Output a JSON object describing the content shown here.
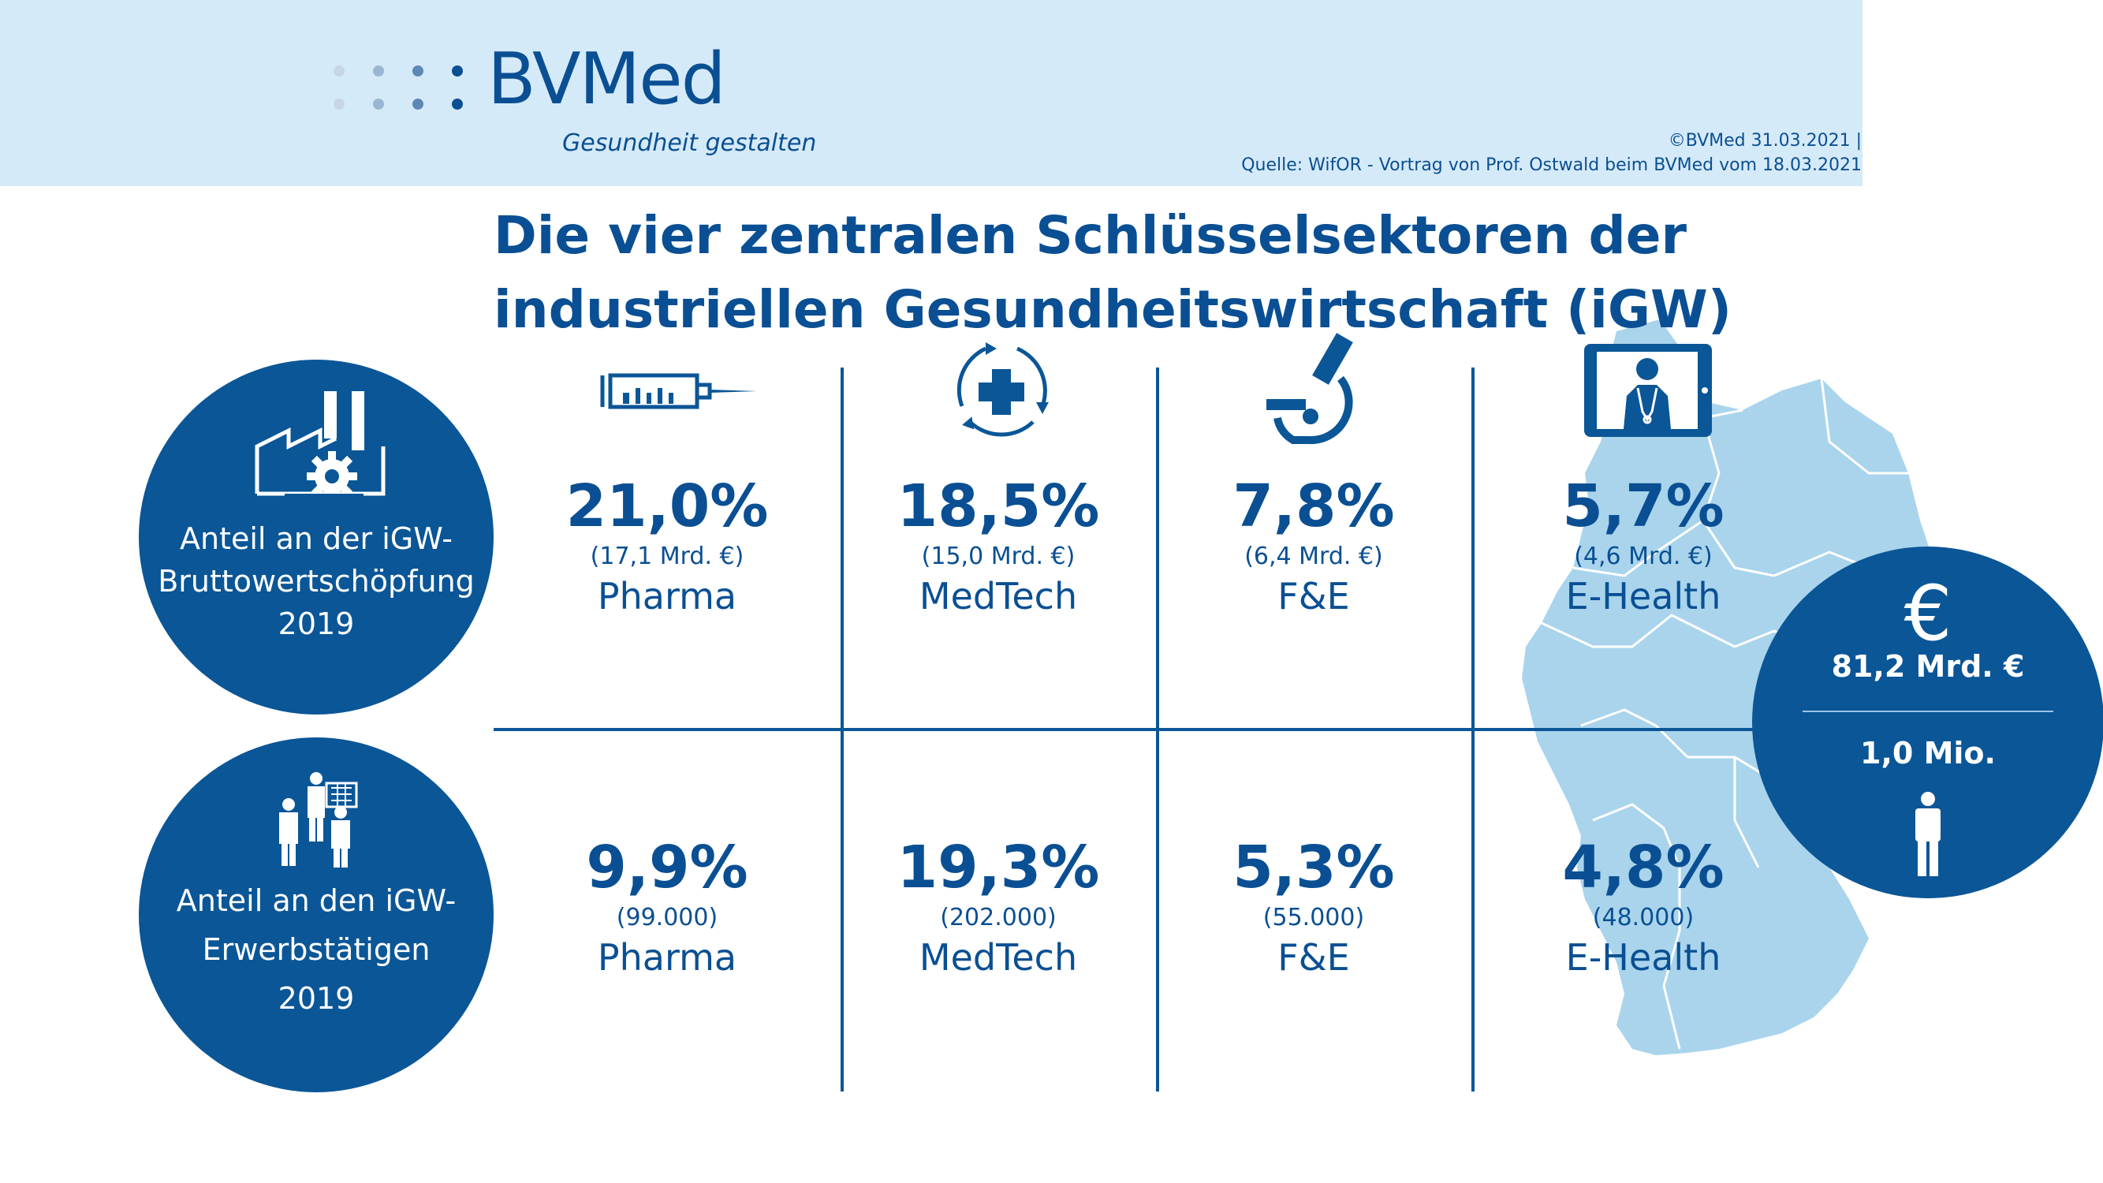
{
  "brand": {
    "logo": "BVMed",
    "tagline": "Gesundheit gestalten",
    "copyright": "©BVMed 31.03.2021 |",
    "source": "Quelle: WifOR - Vortrag von Prof. Ostwald beim BVMed vom 18.03.2021"
  },
  "title": {
    "line1": "Die vier zentralen Schlüsselsektoren der",
    "line2": "industriellen Gesundheitswirtschaft (iGW)"
  },
  "rows": {
    "bws": {
      "line1": "Anteil an der iGW-",
      "line2": "Bruttowertschöpfung",
      "line3": "2019"
    },
    "erw": {
      "line1": "Anteil an den iGW-",
      "line2": "Erwerbstätigen",
      "line3": "2019"
    }
  },
  "icons": {
    "pharma": "syringe-icon",
    "medtech": "medical-cross-cycle-icon",
    "fue": "microscope-icon",
    "ehealth": "tablet-doctor-icon",
    "bws": "factory-gear-icon",
    "erw": "medical-staff-icon",
    "total": "euro-icon",
    "person": "person-icon"
  },
  "sectors": [
    {
      "name": "Pharma",
      "bws_pct": "21,0%",
      "bws_abs": "(17,1 Mrd. €)",
      "erw_pct": "9,9%",
      "erw_abs": "(99.000)"
    },
    {
      "name": "MedTech",
      "bws_pct": "18,5%",
      "bws_abs": "(15,0 Mrd. €)",
      "erw_pct": "19,3%",
      "erw_abs": "(202.000)"
    },
    {
      "name": "F&E",
      "bws_pct": "7,8%",
      "bws_abs": "(6,4 Mrd. €)",
      "erw_pct": "5,3%",
      "erw_abs": "(55.000)"
    },
    {
      "name": "E-Health",
      "bws_pct": "5,7%",
      "bws_abs": "(4,6 Mrd. €)",
      "erw_pct": "4,8%",
      "erw_abs": "(48.000)"
    }
  ],
  "totals": {
    "symbol": "€",
    "value": "81,2 Mrd. €",
    "persons": "1,0 Mio."
  },
  "colors": {
    "primary": "#0a5697",
    "header_bg": "#d5eaf8",
    "map": "#a9d4ec"
  }
}
